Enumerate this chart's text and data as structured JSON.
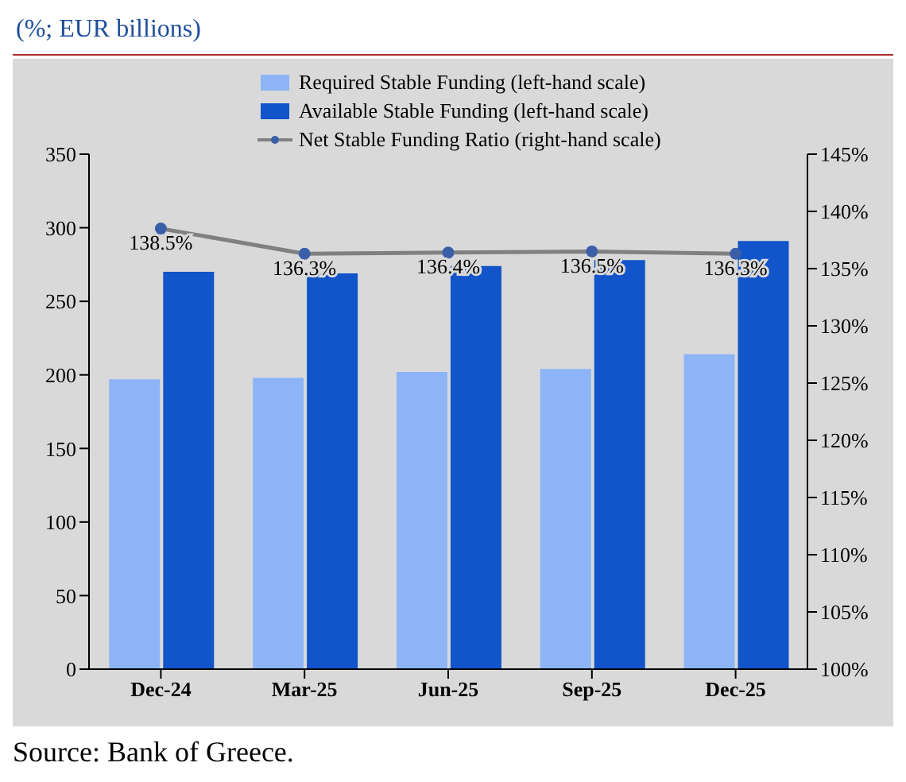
{
  "chart_data": {
    "type": "bar",
    "title": "(%; EUR billions)",
    "annotations": [
      "Source: Bank of Greece."
    ],
    "categories": [
      "Dec-24",
      "Mar-25",
      "Jun-25",
      "Sep-25",
      "Dec-25"
    ],
    "series": [
      {
        "name": "Required Stable Funding (left-hand scale)",
        "color": "#8db4f7",
        "values": [
          197,
          198,
          202,
          204,
          214
        ]
      },
      {
        "name": "Available Stable Funding (left-hand scale)",
        "color": "#1254c9",
        "values": [
          270,
          269,
          274,
          278,
          291
        ]
      },
      {
        "name": "Net Stable Funding Ratio (right-hand scale)",
        "type": "line",
        "axis": "y2",
        "color": "#808080",
        "marker": "circle",
        "values": [
          138.5,
          136.3,
          136.4,
          136.5,
          136.3
        ],
        "value_labels": [
          "138.5%",
          "136.3%",
          "136.4%",
          "136.5%",
          "136.3%"
        ]
      }
    ],
    "ylim": [
      0,
      350
    ],
    "yticks": [
      0,
      50,
      100,
      150,
      200,
      250,
      300,
      350
    ],
    "y2lim": [
      100,
      145
    ],
    "y2ticks": [
      {
        "value": 100,
        "label": "100%"
      },
      {
        "value": 105,
        "label": "105%"
      },
      {
        "value": 110,
        "label": "110%"
      },
      {
        "value": 115,
        "label": "115%"
      },
      {
        "value": 120,
        "label": "120%"
      },
      {
        "value": 125,
        "label": "125%"
      },
      {
        "value": 130,
        "label": "130%"
      },
      {
        "value": 135,
        "label": "135%"
      },
      {
        "value": 140,
        "label": "140%"
      },
      {
        "value": 145,
        "label": "145%"
      }
    ],
    "legend": "top"
  }
}
